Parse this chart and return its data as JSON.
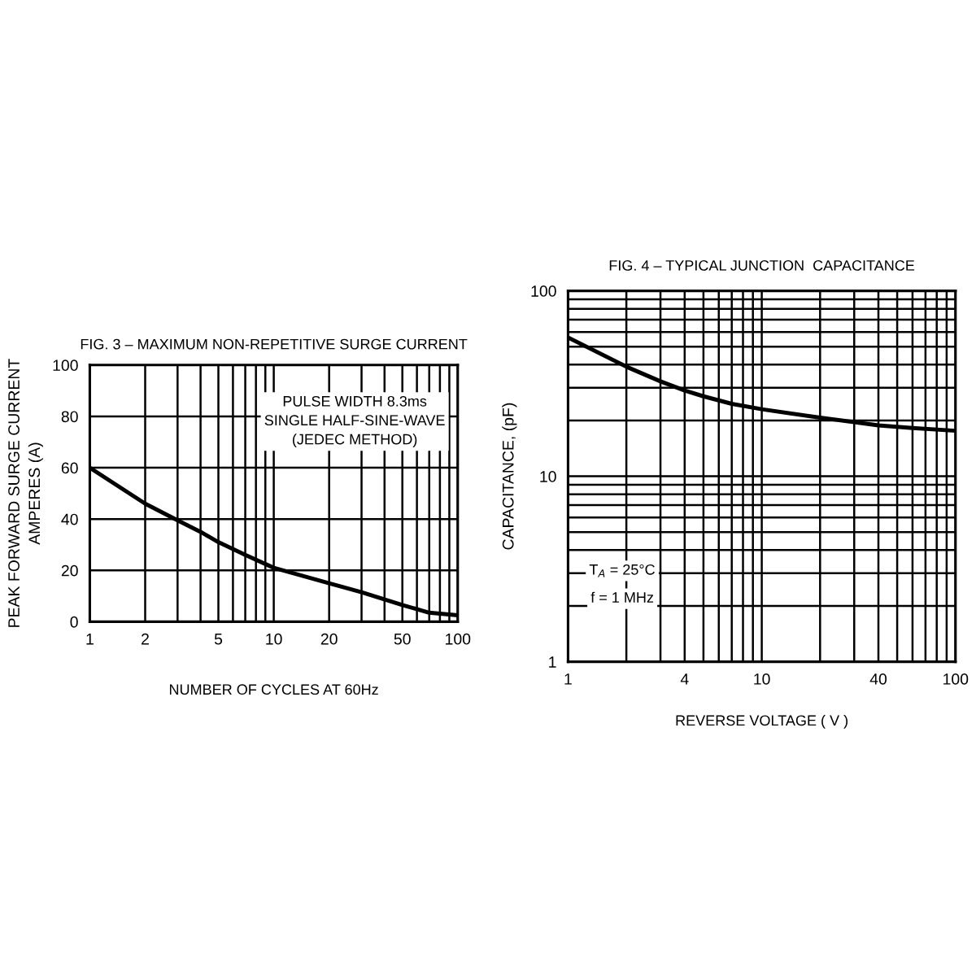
{
  "chart_data": [
    {
      "type": "line",
      "title": "FIG. 3 – MAXIMUM NON-REPETITIVE SURGE CURRENT",
      "xlabel": "NUMBER OF CYCLES AT 60Hz",
      "ylabel": "PEAK FORWARD SURGE CURRENT\nAMPERES (A)",
      "x": [
        1,
        2,
        3,
        4,
        5,
        7,
        10,
        20,
        30,
        50,
        70,
        100
      ],
      "values": [
        60,
        46,
        39.5,
        35,
        31,
        26,
        21,
        15,
        11.5,
        6.5,
        3.5,
        2.5
      ],
      "color": "#000000",
      "log": "x",
      "xlim": [
        1,
        100
      ],
      "xticks": [
        1,
        2,
        {
          "value": 3,
          "label": null
        },
        {
          "value": 4,
          "label": null
        },
        5,
        {
          "value": 6,
          "label": null
        },
        {
          "value": 7,
          "label": null
        },
        {
          "value": 8,
          "label": null
        },
        {
          "value": 9,
          "label": null
        },
        10,
        20,
        {
          "value": 30,
          "label": null
        },
        {
          "value": 40,
          "label": null
        },
        50,
        {
          "value": 60,
          "label": null
        },
        {
          "value": 70,
          "label": null
        },
        {
          "value": 80,
          "label": null
        },
        {
          "value": 90,
          "label": null
        },
        100
      ],
      "ylim": [
        0,
        100
      ],
      "yticks": [
        0,
        20,
        40,
        60,
        80,
        100
      ],
      "grid": true,
      "annotations": [
        "PULSE WIDTH 8.3ms\nSINGLE HALF-SINE-WAVE\n(JEDEC METHOD)"
      ]
    },
    {
      "type": "line",
      "title": "FIG. 4 – TYPICAL JUNCTION  CAPACITANCE",
      "xlabel": "REVERSE VOLTAGE ( V )",
      "ylabel": "CAPACITANCE, (pF)",
      "x": [
        1,
        2,
        3,
        4,
        5,
        7,
        10,
        20,
        30,
        40,
        60,
        100
      ],
      "values": [
        56,
        39,
        32.5,
        29,
        27,
        24.6,
        23,
        20.7,
        19.6,
        18.8,
        18.2,
        17.6
      ],
      "color": "#000000",
      "log": "xy",
      "xlim": [
        1,
        100
      ],
      "xticks": [
        1,
        {
          "value": 2,
          "label": null
        },
        {
          "value": 3,
          "label": null
        },
        4,
        {
          "value": 5,
          "label": null
        },
        {
          "value": 6,
          "label": null
        },
        {
          "value": 7,
          "label": null
        },
        {
          "value": 8,
          "label": null
        },
        {
          "value": 9,
          "label": null
        },
        10,
        {
          "value": 20,
          "label": null
        },
        {
          "value": 30,
          "label": null
        },
        40,
        {
          "value": 50,
          "label": null
        },
        {
          "value": 60,
          "label": null
        },
        {
          "value": 70,
          "label": null
        },
        {
          "value": 80,
          "label": null
        },
        {
          "value": 90,
          "label": null
        },
        100
      ],
      "ylim": [
        1,
        100
      ],
      "yticks": [
        1,
        {
          "value": 2,
          "label": null
        },
        {
          "value": 3,
          "label": null
        },
        {
          "value": 4,
          "label": null
        },
        {
          "value": 5,
          "label": null
        },
        {
          "value": 6,
          "label": null
        },
        {
          "value": 7,
          "label": null
        },
        {
          "value": 8,
          "label": null
        },
        {
          "value": 9,
          "label": null
        },
        10,
        {
          "value": 20,
          "label": null
        },
        {
          "value": 30,
          "label": null
        },
        {
          "value": 40,
          "label": null
        },
        {
          "value": 50,
          "label": null
        },
        {
          "value": 60,
          "label": null
        },
        {
          "value": 70,
          "label": null
        },
        {
          "value": 80,
          "label": null
        },
        {
          "value": 90,
          "label": null
        },
        100
      ],
      "grid": true,
      "annotations": [
        "T$_{A}$ = 25°C",
        "f = 1 MHz"
      ]
    }
  ]
}
